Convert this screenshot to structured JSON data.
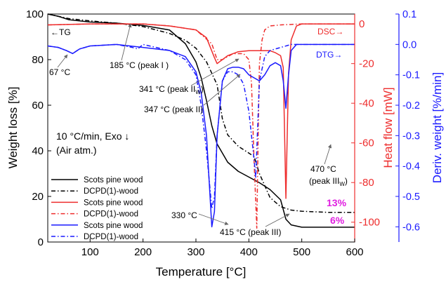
{
  "chart_data": {
    "type": "line",
    "title": "",
    "xlabel": "Temperature [°C]",
    "xlim": [
      20,
      600
    ],
    "x_ticks": [
      "100",
      "200",
      "300",
      "400",
      "500",
      "600"
    ],
    "y_axes": {
      "weight": {
        "label": "Weight loss [%]",
        "lim": [
          0,
          100
        ],
        "ticks": [
          "0",
          "20",
          "40",
          "60",
          "80",
          "100"
        ],
        "color": "#000000"
      },
      "heat": {
        "label": "Heat flow [mW]",
        "lim": [
          -110,
          5
        ],
        "ticks": [
          "0",
          "-20",
          "-40",
          "-60",
          "-80",
          "-100"
        ],
        "color": "#ee2d2d"
      },
      "deriv": {
        "label": "Deriv. weight [%/min]",
        "lim": [
          -0.65,
          0.1
        ],
        "ticks": [
          "0.1",
          "0.0",
          "-0.1",
          "-0.2",
          "-0.3",
          "-0.4",
          "-0.5",
          "-0.6"
        ],
        "color": "#1a1aff"
      }
    },
    "series": [
      {
        "name": "Scots pine wood",
        "axis": "weight",
        "color": "#000000",
        "dash": "solid",
        "x": [
          20,
          40,
          60,
          80,
          100,
          150,
          200,
          250,
          260,
          280,
          300,
          310,
          320,
          330,
          340,
          350,
          360,
          380,
          400,
          420,
          440,
          460,
          470,
          480,
          500,
          550,
          600
        ],
        "y": [
          100,
          99,
          97.5,
          97,
          96.5,
          96,
          95,
          93,
          91,
          87,
          79,
          72,
          62,
          51,
          43,
          39,
          35,
          31,
          28.5,
          26,
          23,
          18.5,
          10,
          7.5,
          6.5,
          6.5,
          6.5
        ]
      },
      {
        "name": "DCPD(1)-wood",
        "axis": "weight",
        "color": "#000000",
        "dash": "dashdot",
        "x": [
          20,
          40,
          60,
          80,
          100,
          150,
          200,
          250,
          280,
          300,
          320,
          340,
          350,
          360,
          380,
          400,
          410,
          420,
          440,
          460,
          480,
          500,
          550,
          600
        ],
        "y": [
          100,
          99,
          98,
          97.5,
          97,
          96,
          94.5,
          91.5,
          88.5,
          85,
          79,
          69,
          54,
          47,
          42,
          39,
          37.5,
          30,
          19.5,
          15.5,
          14,
          13.5,
          13,
          13
        ]
      },
      {
        "name": "Scots pine wood",
        "axis": "heat",
        "color": "#ee2d2d",
        "dash": "solid",
        "x": [
          20,
          100,
          200,
          250,
          300,
          320,
          335,
          340,
          345,
          360,
          380,
          400,
          420,
          440,
          450,
          460,
          465,
          470,
          475,
          480,
          490,
          500,
          550,
          600
        ],
        "y": [
          -0.5,
          0,
          0,
          -1,
          -3,
          -7,
          -17,
          -20,
          -19,
          -16,
          -14,
          -13.5,
          -13.5,
          -13.5,
          -14.5,
          -16,
          -22,
          -88,
          -25,
          -8,
          -1,
          0,
          0,
          0
        ]
      },
      {
        "name": "DCPD(1)-wood",
        "axis": "heat",
        "color": "#ee2d2d",
        "dash": "dashdot",
        "x": [
          20,
          100,
          200,
          250,
          300,
          330,
          340,
          350,
          370,
          390,
          400,
          405,
          410,
          415,
          418,
          420,
          425,
          430,
          440,
          460,
          500,
          600
        ],
        "y": [
          -0.5,
          0,
          0,
          -1,
          -3,
          -10,
          -18,
          -18,
          -15,
          -15,
          -18,
          -30,
          -70,
          -103,
          -50,
          -20,
          -8,
          -3,
          -1,
          -0.5,
          0,
          0
        ]
      },
      {
        "name": "Scots pine wood",
        "axis": "deriv",
        "color": "#1a1aff",
        "dash": "solid",
        "x": [
          20,
          40,
          55,
          67,
          80,
          100,
          150,
          200,
          250,
          280,
          300,
          310,
          320,
          325,
          330,
          335,
          340,
          350,
          360,
          370,
          380,
          390,
          400,
          410,
          420,
          430,
          440,
          450,
          460,
          465,
          470,
          475,
          480,
          490,
          500,
          550,
          600
        ],
        "y": [
          -0.005,
          -0.01,
          -0.02,
          -0.03,
          -0.015,
          -0.005,
          0,
          -0.01,
          -0.02,
          -0.04,
          -0.09,
          -0.16,
          -0.3,
          -0.45,
          -0.6,
          -0.55,
          -0.3,
          -0.12,
          -0.08,
          -0.075,
          -0.075,
          -0.08,
          -0.1,
          -0.11,
          -0.12,
          -0.1,
          -0.07,
          -0.06,
          -0.07,
          -0.12,
          -0.21,
          -0.1,
          -0.02,
          0,
          0,
          0,
          0
        ]
      },
      {
        "name": "DCPD(1)-wood",
        "axis": "deriv",
        "color": "#1a1aff",
        "dash": "dashdot",
        "x": [
          20,
          40,
          55,
          67,
          80,
          100,
          150,
          180,
          190,
          200,
          250,
          280,
          300,
          310,
          320,
          330,
          335,
          340,
          350,
          360,
          370,
          380,
          390,
          400,
          405,
          410,
          413,
          416,
          420,
          430,
          440,
          460,
          480,
          500,
          600
        ],
        "y": [
          -0.005,
          -0.01,
          -0.02,
          -0.03,
          -0.015,
          -0.005,
          0,
          -0.01,
          -0.015,
          0,
          -0.02,
          -0.05,
          -0.1,
          -0.2,
          -0.35,
          -0.54,
          -0.5,
          -0.3,
          -0.12,
          -0.09,
          -0.09,
          -0.1,
          -0.13,
          -0.22,
          -0.3,
          -0.38,
          -0.44,
          -0.3,
          -0.12,
          -0.04,
          -0.02,
          -0.01,
          0,
          0,
          0
        ]
      }
    ],
    "legend": {
      "placement": "bottom-left",
      "entries": [
        {
          "label": "Scots pine wood",
          "color": "#000000",
          "dash": "solid"
        },
        {
          "label": "DCPD(1)-wood",
          "color": "#000000",
          "dash": "dashdot"
        },
        {
          "label": "Scots pine wood",
          "color": "#ee2d2d",
          "dash": "solid"
        },
        {
          "label": "DCPD(1)-wood",
          "color": "#ee2d2d",
          "dash": "dashdot"
        },
        {
          "label": "Scots pine wood",
          "color": "#1a1aff",
          "dash": "solid"
        },
        {
          "label": "DCPD(1)-wood",
          "color": "#1a1aff",
          "dash": "dashdot"
        }
      ]
    },
    "annotations": {
      "tg": "←TG",
      "dsc": "DSC→",
      "dtg": "DTG→",
      "conditions_1": "10 °C/min, Exo ↓",
      "conditions_2": "(Air atm.)",
      "a67": "67 °C",
      "a185": "185 °C (peak I )",
      "a341": "341 °C (peak II",
      "a341_sub": "W",
      "a347": "347 °C (peak II)",
      "a330": "330 °C",
      "a415": "415 °C (peak III)",
      "a470_1": "470 °C",
      "a470_2": "(peak III",
      "a470_sub": "W",
      "residue_13": "13%",
      "residue_6": "6%",
      "residue_color": "#e020e0"
    }
  }
}
